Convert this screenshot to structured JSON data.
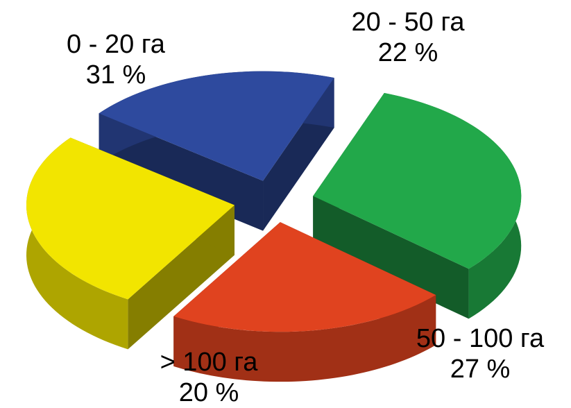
{
  "chart_data": {
    "type": "pie",
    "style": "3d-exploded",
    "title": "",
    "slices": [
      {
        "category": "0 - 20 га",
        "value": 31,
        "value_label": "31 %",
        "color": "#22A84A"
      },
      {
        "category": "20 - 50 га",
        "value": 22,
        "value_label": "22 %",
        "color": "#E0431F"
      },
      {
        "category": "50 - 100 га",
        "value": 27,
        "value_label": "27 %",
        "color": "#F2E500"
      },
      {
        "category": "> 100 га",
        "value": 20,
        "value_label": "20 %",
        "color": "#2E4A9E"
      }
    ],
    "legend": "none",
    "grid": false
  }
}
